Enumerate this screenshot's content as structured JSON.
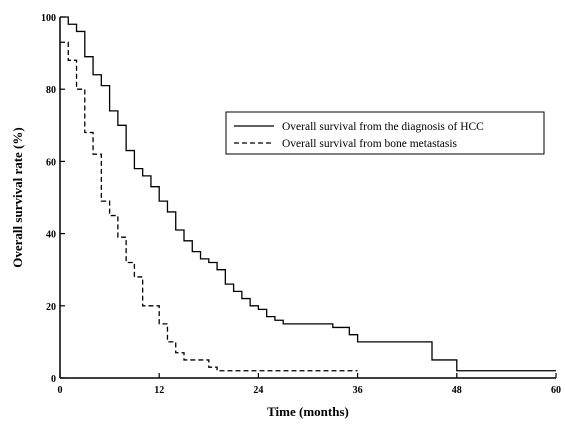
{
  "chart_data": {
    "type": "line",
    "title": "",
    "xlabel": "Time (months)",
    "ylabel": "Overall survival rate (%)",
    "xlim": [
      0,
      60
    ],
    "ylim": [
      0,
      100
    ],
    "xticks": [
      0,
      12,
      24,
      36,
      48,
      60
    ],
    "yticks": [
      0,
      20,
      40,
      60,
      80,
      100
    ],
    "grid": false,
    "legend_position": "top-right",
    "series": [
      {
        "name": "Overall survival from the diagnosis of HCC",
        "style": "solid",
        "x": [
          0,
          1,
          2,
          3,
          4,
          5,
          6,
          7,
          8,
          9,
          10,
          11,
          12,
          13,
          14,
          15,
          16,
          17,
          18,
          19,
          20,
          21,
          22,
          23,
          24,
          25,
          26,
          27,
          30,
          33,
          35,
          36,
          37,
          40,
          45,
          46,
          48,
          60
        ],
        "y": [
          100,
          98,
          96,
          89,
          84,
          81,
          74,
          70,
          63,
          58,
          56,
          53,
          49,
          46,
          41,
          38,
          35,
          33,
          32,
          30,
          26,
          24,
          22,
          20,
          19,
          17,
          16,
          15,
          15,
          14,
          12,
          10,
          10,
          10,
          5,
          5,
          2,
          2
        ]
      },
      {
        "name": "Overall survival from bone metastasis",
        "style": "dashed",
        "x": [
          0,
          1,
          2,
          3,
          4,
          5,
          6,
          7,
          8,
          9,
          10,
          11,
          12,
          13,
          14,
          15,
          16,
          17,
          18,
          19,
          20,
          36
        ],
        "y": [
          93,
          88,
          80,
          68,
          62,
          49,
          45,
          39,
          32,
          28,
          20,
          20,
          15,
          10,
          7,
          5,
          5,
          5,
          3,
          2,
          2,
          2
        ]
      }
    ]
  }
}
